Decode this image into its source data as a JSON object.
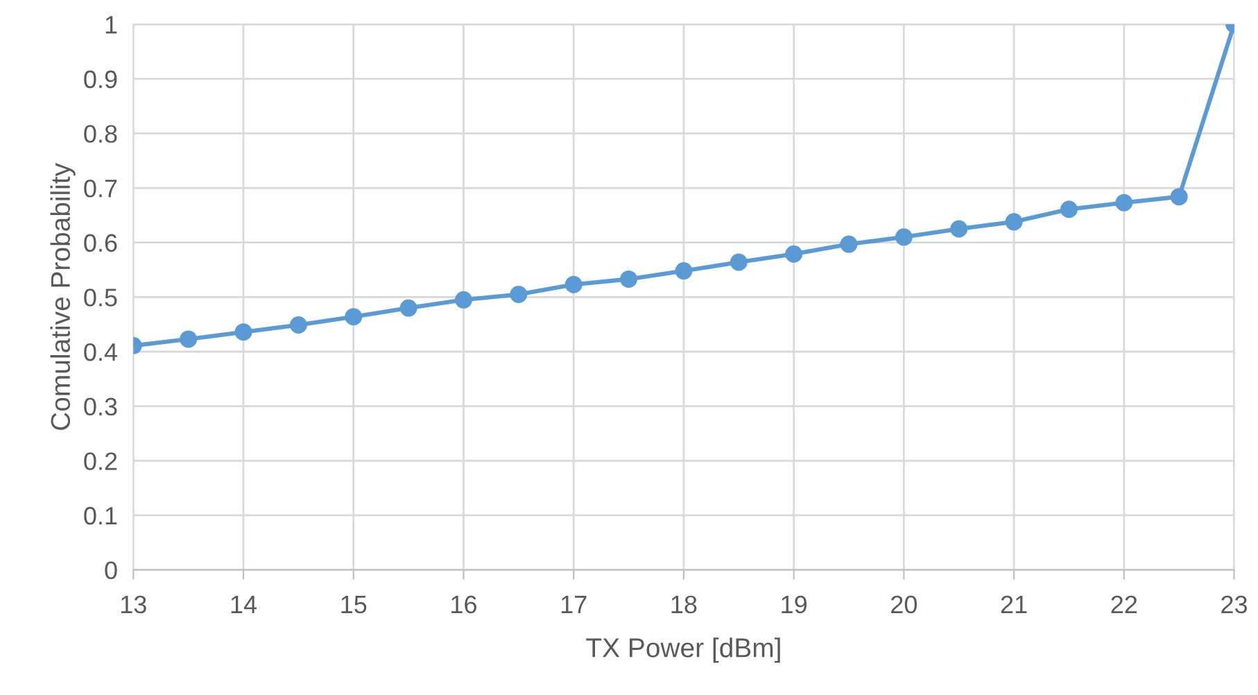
{
  "chart_data": {
    "type": "line",
    "xlabel": "TX Power [dBm]",
    "ylabel": "Comulative Probability",
    "x": [
      13,
      13.5,
      14,
      14.5,
      15,
      15.5,
      16,
      16.5,
      17,
      17.5,
      18,
      18.5,
      19,
      19.5,
      20,
      20.5,
      21,
      21.5,
      22,
      22.5,
      23
    ],
    "series": [
      {
        "color": "#5b9bd5",
        "values": [
          0.411,
          0.423,
          0.436,
          0.449,
          0.464,
          0.48,
          0.495,
          0.505,
          0.523,
          0.533,
          0.548,
          0.564,
          0.579,
          0.597,
          0.61,
          0.625,
          0.638,
          0.661,
          0.673,
          0.684,
          1.0
        ]
      }
    ],
    "xlim": [
      13,
      23
    ],
    "xticks": [
      13,
      14,
      15,
      16,
      17,
      18,
      19,
      20,
      21,
      22,
      23
    ],
    "ylim": [
      0,
      1
    ],
    "yticks": [
      0,
      0.1,
      0.2,
      0.3,
      0.4,
      0.5,
      0.6,
      0.7,
      0.8,
      0.9,
      1
    ],
    "grid": true,
    "marker": "circle",
    "line_style": "solid",
    "legend": false
  }
}
